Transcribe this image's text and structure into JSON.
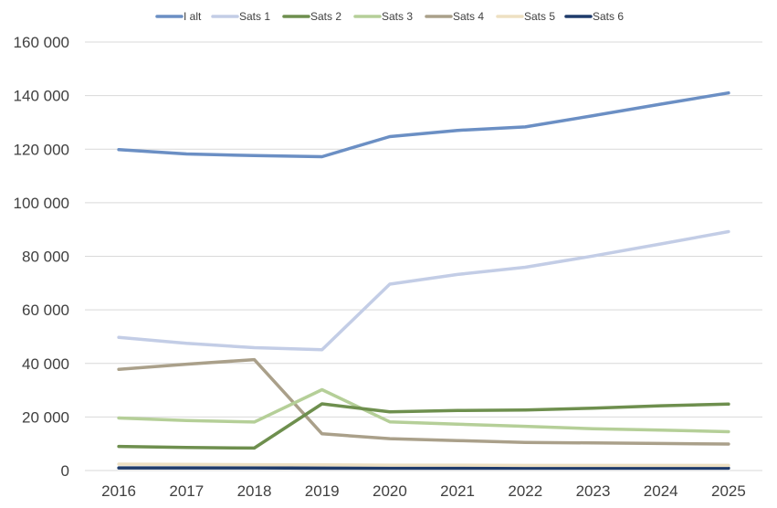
{
  "chart_data": {
    "type": "line",
    "title": "",
    "xlabel": "",
    "ylabel": "",
    "ylim": [
      0,
      160000
    ],
    "yticks": [
      0,
      20000,
      40000,
      60000,
      80000,
      100000,
      120000,
      140000,
      160000
    ],
    "ytick_labels": [
      "0",
      "20 000",
      "40 000",
      "60 000",
      "80 000",
      "100 000",
      "120 000",
      "140 000",
      "160 000"
    ],
    "categories": [
      "2016",
      "2017",
      "2018",
      "2019",
      "2020",
      "2021",
      "2022",
      "2023",
      "2024",
      "2025"
    ],
    "grid": true,
    "legend_position": "top",
    "series": [
      {
        "name": "I alt",
        "color": "#6b8fc4",
        "values": [
          119800,
          118200,
          117600,
          117200,
          124700,
          127000,
          128300,
          132500,
          136800,
          141000
        ]
      },
      {
        "name": "Sats 1",
        "color": "#c3cde6",
        "values": [
          49700,
          47500,
          45900,
          45100,
          69600,
          73200,
          75900,
          80100,
          84600,
          89200
        ]
      },
      {
        "name": "Sats 2",
        "color": "#6e8f4e",
        "values": [
          9000,
          8600,
          8400,
          24900,
          21900,
          22400,
          22600,
          23300,
          24200,
          24800
        ]
      },
      {
        "name": "Sats 3",
        "color": "#b5cf98",
        "values": [
          19600,
          18700,
          18100,
          30200,
          18200,
          17300,
          16500,
          15600,
          15100,
          14500
        ]
      },
      {
        "name": "Sats 4",
        "color": "#aaa08a",
        "values": [
          37800,
          39700,
          41400,
          13700,
          11900,
          11200,
          10500,
          10300,
          10100,
          9900
        ]
      },
      {
        "name": "Sats 5",
        "color": "#eee0c2",
        "values": [
          2400,
          2300,
          2200,
          2100,
          2000,
          2000,
          1900,
          1900,
          1900,
          1900
        ]
      },
      {
        "name": "Sats 6",
        "color": "#1f3b6b",
        "values": [
          1000,
          1000,
          1000,
          900,
          900,
          900,
          900,
          900,
          900,
          900
        ]
      }
    ]
  }
}
